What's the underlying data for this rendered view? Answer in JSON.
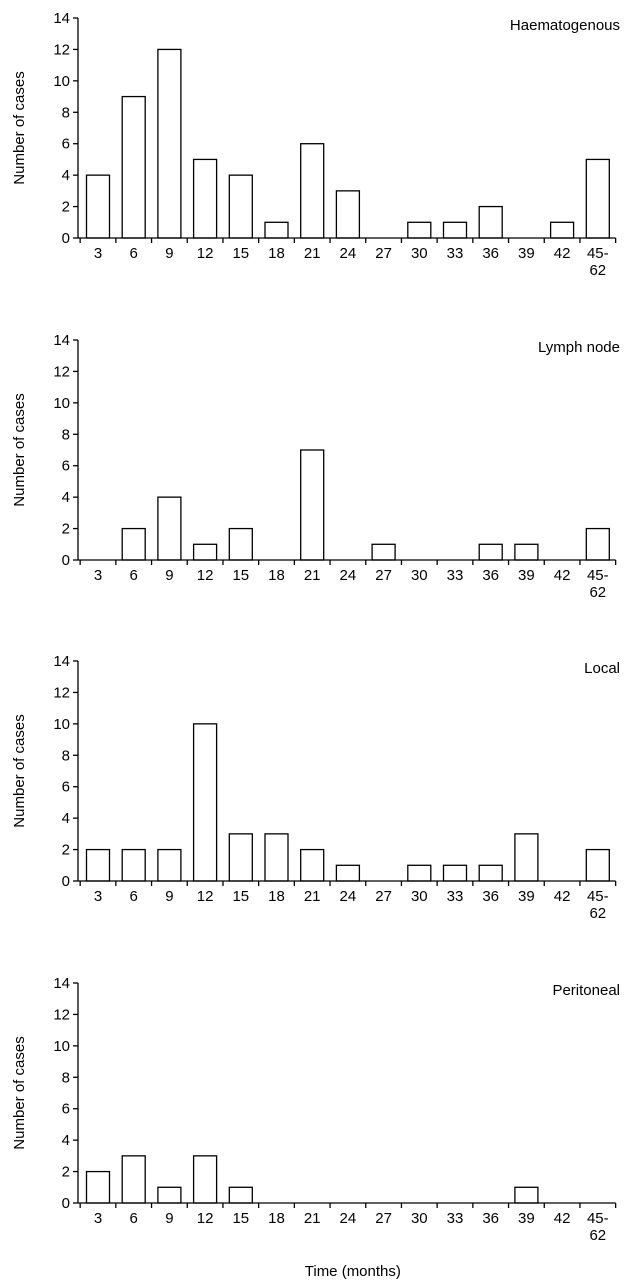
{
  "chart_data": [
    {
      "type": "bar",
      "title": "Haematogenous",
      "ylabel": "Number of cases",
      "xlabel": "",
      "categories": [
        "3",
        "6",
        "9",
        "12",
        "15",
        "18",
        "21",
        "24",
        "27",
        "30",
        "33",
        "36",
        "39",
        "42",
        "45-62"
      ],
      "values": [
        4,
        9,
        12,
        5,
        4,
        1,
        6,
        3,
        0,
        1,
        1,
        2,
        0,
        1,
        5
      ],
      "ylim": [
        0,
        14
      ],
      "yticks": [
        0,
        2,
        4,
        6,
        8,
        10,
        12,
        14
      ],
      "legend": "none",
      "grid": false
    },
    {
      "type": "bar",
      "title": "Lymph node",
      "ylabel": "Number of cases",
      "xlabel": "",
      "categories": [
        "3",
        "6",
        "9",
        "12",
        "15",
        "18",
        "21",
        "24",
        "27",
        "30",
        "33",
        "36",
        "39",
        "42",
        "45-62"
      ],
      "values": [
        0,
        2,
        4,
        1,
        2,
        0,
        7,
        0,
        1,
        0,
        0,
        1,
        1,
        0,
        2
      ],
      "ylim": [
        0,
        14
      ],
      "yticks": [
        0,
        2,
        4,
        6,
        8,
        10,
        12,
        14
      ],
      "legend": "none",
      "grid": false
    },
    {
      "type": "bar",
      "title": "Local",
      "ylabel": "Number of cases",
      "xlabel": "",
      "categories": [
        "3",
        "6",
        "9",
        "12",
        "15",
        "18",
        "21",
        "24",
        "27",
        "30",
        "33",
        "36",
        "39",
        "42",
        "45-62"
      ],
      "values": [
        2,
        2,
        2,
        10,
        3,
        3,
        2,
        1,
        0,
        1,
        1,
        1,
        3,
        0,
        2
      ],
      "ylim": [
        0,
        14
      ],
      "yticks": [
        0,
        2,
        4,
        6,
        8,
        10,
        12,
        14
      ],
      "legend": "none",
      "grid": false
    },
    {
      "type": "bar",
      "title": "Peritoneal",
      "ylabel": "Number of cases",
      "xlabel": "Time (months)",
      "categories": [
        "3",
        "6",
        "9",
        "12",
        "15",
        "18",
        "21",
        "24",
        "27",
        "30",
        "33",
        "36",
        "39",
        "42",
        "45-62"
      ],
      "values": [
        2,
        3,
        1,
        3,
        1,
        0,
        0,
        0,
        0,
        0,
        0,
        0,
        1,
        0,
        0
      ],
      "ylim": [
        0,
        14
      ],
      "yticks": [
        0,
        2,
        4,
        6,
        8,
        10,
        12,
        14
      ],
      "legend": "none",
      "grid": false
    }
  ]
}
